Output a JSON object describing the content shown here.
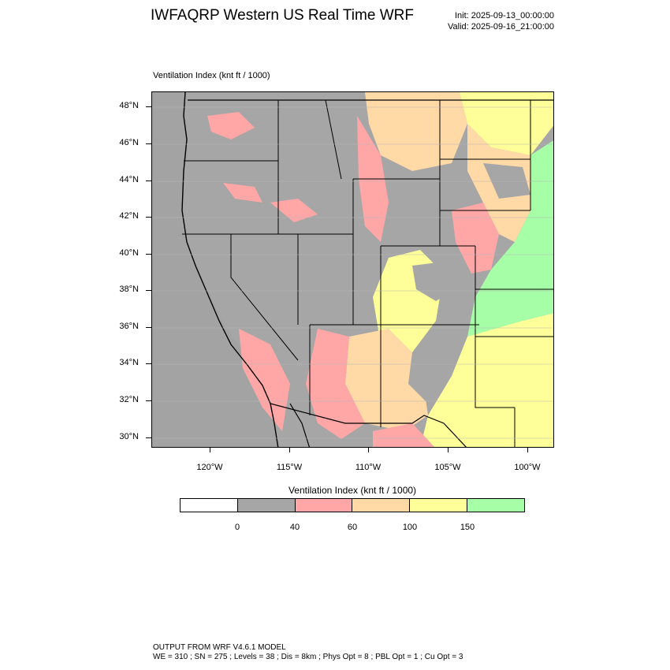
{
  "header": {
    "title": "IWFAQRP Western US Real Time WRF",
    "init": "Init: 2025-09-13_00:00:00",
    "valid": "Valid: 2025-09-16_21:00:00"
  },
  "map": {
    "subtitle": "Ventilation Index   (knt ft / 1000)",
    "background_color": "#a6a6a6",
    "lat_labels": [
      "48°N",
      "46°N",
      "44°N",
      "42°N",
      "40°N",
      "38°N",
      "36°N",
      "34°N",
      "32°N",
      "30°N"
    ],
    "lon_labels": [
      "120°W",
      "115°W",
      "110°W",
      "105°W",
      "100°W"
    ]
  },
  "legend": {
    "title": "Ventilation Index  (knt ft / 1000)",
    "colors": [
      "#ffffff",
      "#a6a6a6",
      "#ffa6a6",
      "#ffd9a6",
      "#ffff99",
      "#a6ffa6"
    ],
    "tick_labels": [
      "0",
      "40",
      "60",
      "100",
      "150"
    ]
  },
  "footer": {
    "line1": "OUTPUT FROM WRF V4.6.1 MODEL",
    "line2": "WE = 310 ; SN = 275 ; Levels = 38 ; Dis = 8km ; Phys Opt = 8 ; PBL Opt = 1 ; Cu Opt = 3"
  }
}
